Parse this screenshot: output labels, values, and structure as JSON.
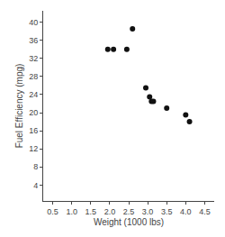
{
  "chart_data": {
    "type": "scatter",
    "x": [
      1.95,
      2.1,
      2.45,
      2.6,
      2.95,
      3.05,
      3.1,
      3.15,
      3.5,
      4.0,
      4.1
    ],
    "values": [
      34.0,
      34.0,
      34.0,
      38.5,
      25.5,
      23.5,
      22.5,
      22.5,
      21.0,
      19.5,
      18.0
    ],
    "xlabel": "Weight (1000 lbs)",
    "ylabel": "Fuel Efficiency (mpg)",
    "xlim": [
      0.25,
      4.75
    ],
    "ylim": [
      0.5,
      42.5
    ],
    "xticks": [
      0.5,
      {
        "value": 1.0,
        "label": "1.0"
      },
      1.5,
      {
        "value": 2.0,
        "label": "2.0"
      },
      2.5,
      {
        "value": 3.0,
        "label": "3.0"
      },
      3.5,
      {
        "value": 4.0,
        "label": "4.0"
      },
      4.5
    ],
    "yticks": [
      4,
      8,
      12,
      16,
      20,
      24,
      28,
      32,
      36,
      40
    ],
    "color": "#111111",
    "marker": "circle",
    "grid": false
  }
}
